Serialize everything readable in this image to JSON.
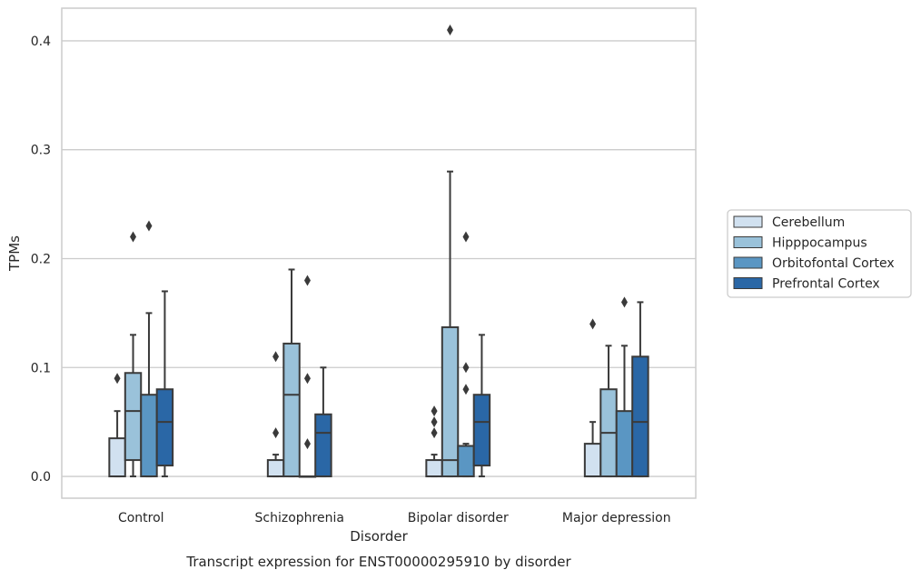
{
  "chart_data": {
    "type": "box",
    "title": "",
    "caption": "Transcript expression for ENST00000295910 by disorder",
    "xlabel": "Disorder",
    "ylabel": "TPMs",
    "ylim": [
      -0.02,
      0.43
    ],
    "yticks": [
      0.0,
      0.1,
      0.2,
      0.3,
      0.4
    ],
    "ytick_labels": [
      "0.0",
      "0.1",
      "0.2",
      "0.3",
      "0.4"
    ],
    "grid": "horizontal",
    "legend_position": "right",
    "categories": [
      "Control",
      "Schizophrenia",
      "Bipolar disorder",
      "Major depression"
    ],
    "series": [
      {
        "name": "Cerebellum",
        "color": "#d1e1f0",
        "boxes": [
          {
            "q1": 0.0,
            "median": 0.0,
            "q3": 0.035,
            "whisker_low": 0.0,
            "whisker_high": 0.06,
            "outliers": [
              0.09
            ]
          },
          {
            "q1": 0.0,
            "median": 0.0,
            "q3": 0.015,
            "whisker_low": 0.0,
            "whisker_high": 0.02,
            "outliers": [
              0.04,
              0.11
            ]
          },
          {
            "q1": 0.0,
            "median": 0.0,
            "q3": 0.015,
            "whisker_low": 0.0,
            "whisker_high": 0.02,
            "outliers": [
              0.04,
              0.05,
              0.06
            ]
          },
          {
            "q1": 0.0,
            "median": 0.0,
            "q3": 0.03,
            "whisker_low": 0.0,
            "whisker_high": 0.05,
            "outliers": [
              0.14
            ]
          }
        ]
      },
      {
        "name": "Hipppocampus",
        "color": "#9ac2da",
        "boxes": [
          {
            "q1": 0.015,
            "median": 0.06,
            "q3": 0.095,
            "whisker_low": 0.0,
            "whisker_high": 0.13,
            "outliers": [
              0.22
            ]
          },
          {
            "q1": 0.0,
            "median": 0.075,
            "q3": 0.122,
            "whisker_low": 0.0,
            "whisker_high": 0.19,
            "outliers": []
          },
          {
            "q1": 0.0,
            "median": 0.015,
            "q3": 0.137,
            "whisker_low": 0.0,
            "whisker_high": 0.28,
            "outliers": [
              0.41
            ]
          },
          {
            "q1": 0.0,
            "median": 0.04,
            "q3": 0.08,
            "whisker_low": 0.0,
            "whisker_high": 0.12,
            "outliers": []
          }
        ]
      },
      {
        "name": "Orbitofontal Cortex",
        "color": "#5a96c3",
        "boxes": [
          {
            "q1": 0.0,
            "median": 0.0,
            "q3": 0.075,
            "whisker_low": 0.0,
            "whisker_high": 0.15,
            "outliers": [
              0.23
            ]
          },
          {
            "q1": 0.0,
            "median": 0.0,
            "q3": 0.0,
            "whisker_low": 0.0,
            "whisker_high": 0.0,
            "outliers": [
              0.03,
              0.09,
              0.18
            ]
          },
          {
            "q1": 0.0,
            "median": 0.0,
            "q3": 0.028,
            "whisker_low": 0.0,
            "whisker_high": 0.03,
            "outliers": [
              0.08,
              0.1,
              0.22
            ]
          },
          {
            "q1": 0.0,
            "median": 0.0,
            "q3": 0.06,
            "whisker_low": 0.0,
            "whisker_high": 0.12,
            "outliers": [
              0.16
            ]
          }
        ]
      },
      {
        "name": "Prefrontal Cortex",
        "color": "#2a67a6",
        "boxes": [
          {
            "q1": 0.01,
            "median": 0.05,
            "q3": 0.08,
            "whisker_low": 0.0,
            "whisker_high": 0.17,
            "outliers": []
          },
          {
            "q1": 0.0,
            "median": 0.04,
            "q3": 0.057,
            "whisker_low": 0.0,
            "whisker_high": 0.1,
            "outliers": []
          },
          {
            "q1": 0.01,
            "median": 0.05,
            "q3": 0.075,
            "whisker_low": 0.0,
            "whisker_high": 0.13,
            "outliers": []
          },
          {
            "q1": 0.0,
            "median": 0.05,
            "q3": 0.11,
            "whisker_low": 0.0,
            "whisker_high": 0.16,
            "outliers": []
          }
        ]
      }
    ]
  }
}
